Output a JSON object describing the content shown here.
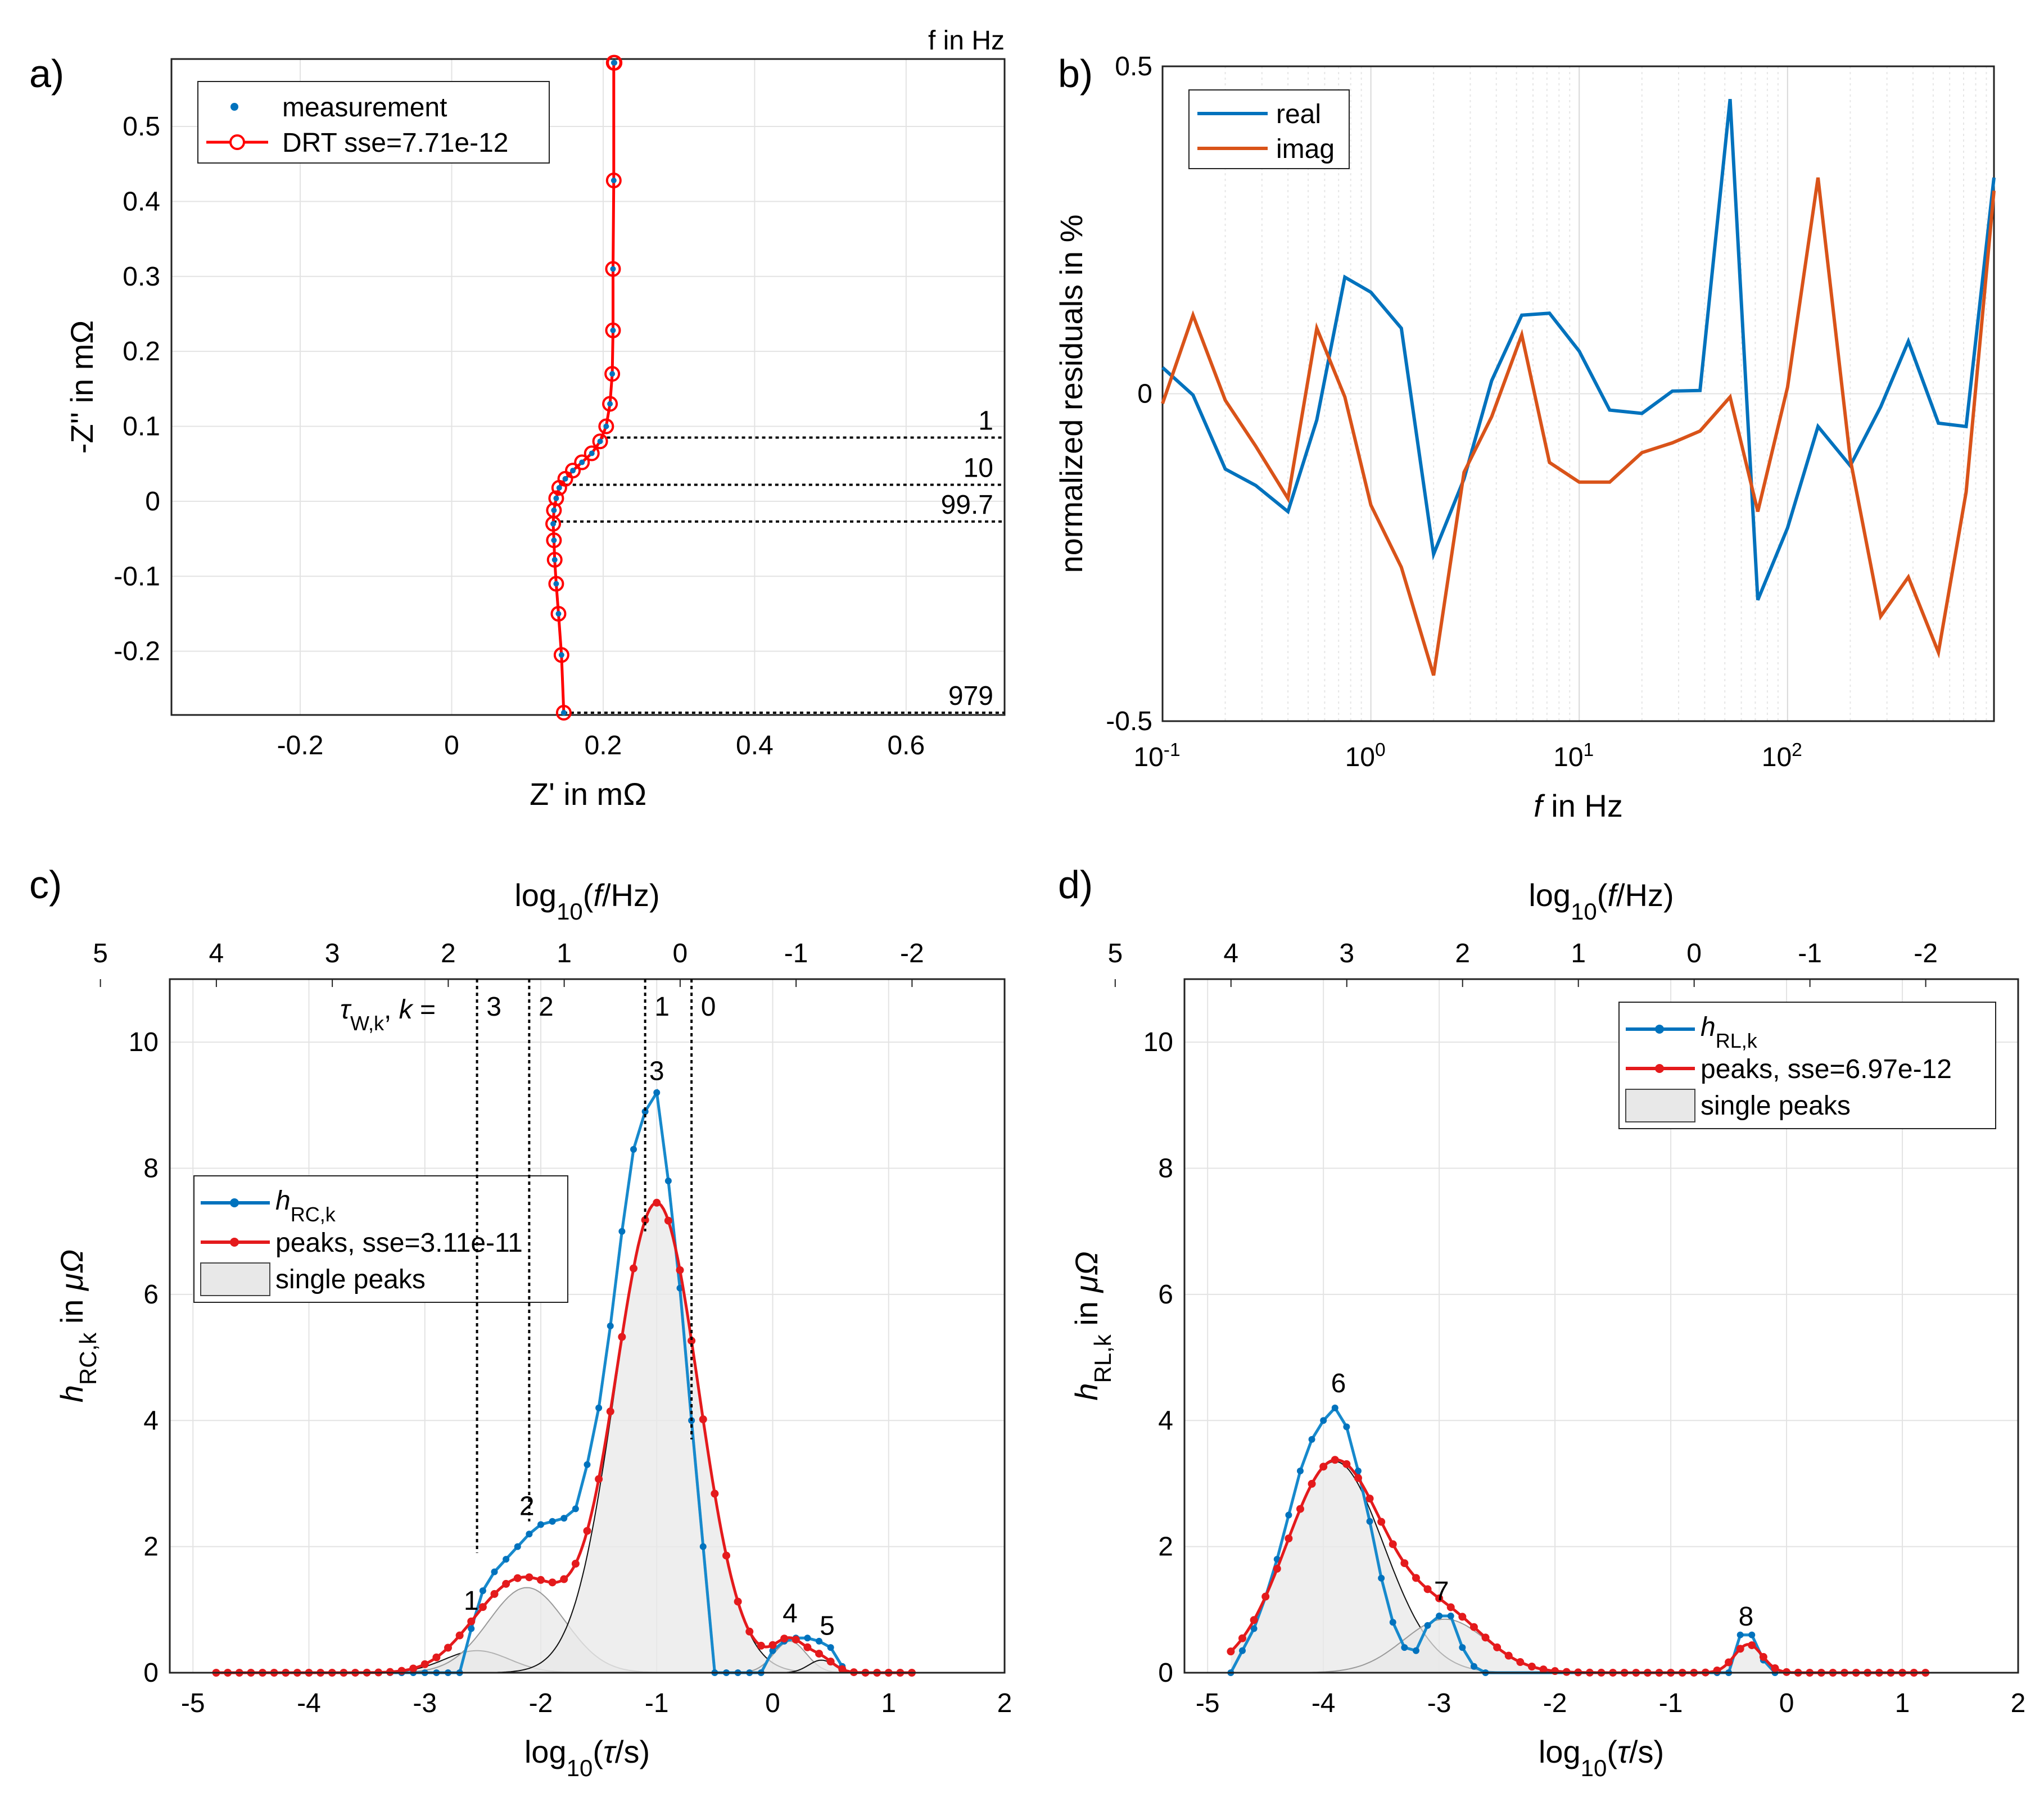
{
  "figure": {
    "panel_a": "a)",
    "panel_b": "b)",
    "panel_c": "c)",
    "panel_d": "d)"
  },
  "chart_data": [
    {
      "id": "a",
      "type": "line",
      "title": "",
      "xlabel": "Z' in mΩ",
      "ylabel": "-Z'' in mΩ",
      "xlim": [
        -0.37,
        0.73
      ],
      "ylim": [
        -0.285,
        0.59
      ],
      "xticks": [
        "-0.2",
        "0",
        "0.2",
        "0.4",
        "0.6"
      ],
      "xtick_values": [
        -0.2,
        0,
        0.2,
        0.4,
        0.6
      ],
      "yticks": [
        "-0.2",
        "-0.1",
        "0",
        "0.1",
        "0.2",
        "0.3",
        "0.4",
        "0.5"
      ],
      "ytick_values": [
        -0.2,
        -0.1,
        0,
        0.1,
        0.2,
        0.3,
        0.4,
        0.5
      ],
      "corner_label": "f in Hz",
      "legend": [
        "measurement",
        "DRT sse=7.71e-12"
      ],
      "series": [
        {
          "name": "measurement / DRT",
          "x": [
            0.148,
            0.145,
            0.141,
            0.138,
            0.136,
            0.135,
            0.134,
            0.135,
            0.138,
            0.142,
            0.15,
            0.16,
            0.172,
            0.185,
            0.196,
            0.204,
            0.209,
            0.212,
            0.213,
            0.213,
            0.214,
            0.214,
            0.215
          ],
          "y": [
            -0.282,
            -0.205,
            -0.15,
            -0.11,
            -0.078,
            -0.052,
            -0.03,
            -0.012,
            0.004,
            0.018,
            0.03,
            0.041,
            0.052,
            0.064,
            0.08,
            0.1,
            0.13,
            0.17,
            0.228,
            0.31,
            0.428,
            0.585,
            0.585
          ]
        }
      ],
      "freq_markers": [
        {
          "label": "1",
          "y": 0.085
        },
        {
          "label": "10",
          "y": 0.022
        },
        {
          "label": "99.7",
          "y": -0.027
        },
        {
          "label": "979",
          "y": -0.282
        }
      ]
    },
    {
      "id": "b",
      "type": "line",
      "xlabel": "f in Hz",
      "ylabel": "normalized residuals in %",
      "xscale": "log",
      "xlim": [
        0.1,
        979
      ],
      "ylim": [
        -0.5,
        0.5
      ],
      "xticks": [
        "10",
        "10",
        "10",
        "10"
      ],
      "xtick_exponents": [
        "-1",
        "0",
        "1",
        "2"
      ],
      "yticks": [
        "-0.5",
        "0",
        "0.5"
      ],
      "ytick_values": [
        -0.5,
        0,
        0.5
      ],
      "legend": [
        "real",
        "imag"
      ],
      "x": [
        0.1,
        0.14,
        0.2,
        0.28,
        0.4,
        0.55,
        0.75,
        1.0,
        1.4,
        2.0,
        2.8,
        3.8,
        5.3,
        7.2,
        10,
        14,
        20,
        28,
        38,
        53,
        72,
        100,
        140,
        200,
        280,
        380,
        530,
        720,
        979
      ],
      "series": [
        {
          "name": "real",
          "color": "#0072BD",
          "values": [
            0.04,
            -0.002,
            -0.115,
            -0.14,
            -0.18,
            -0.04,
            0.178,
            0.155,
            0.1,
            -0.245,
            -0.13,
            0.02,
            0.12,
            0.123,
            0.065,
            -0.025,
            -0.03,
            0.004,
            0.005,
            0.45,
            -0.315,
            -0.205,
            -0.05,
            -0.11,
            -0.02,
            0.08,
            -0.045,
            -0.05,
            0.33
          ]
        },
        {
          "name": "imag",
          "color": "#D95319",
          "values": [
            -0.015,
            0.12,
            -0.01,
            -0.08,
            -0.16,
            0.1,
            -0.005,
            -0.17,
            -0.265,
            -0.43,
            -0.12,
            -0.035,
            0.09,
            -0.105,
            -0.135,
            -0.135,
            -0.09,
            -0.075,
            -0.057,
            -0.005,
            -0.18,
            0.01,
            0.33,
            -0.1,
            -0.34,
            -0.28,
            -0.395,
            -0.15,
            0.31
          ]
        }
      ]
    },
    {
      "id": "c",
      "type": "area",
      "xlabel": "log10(τ/s)",
      "xlabel_parts": [
        "log",
        "10",
        "(",
        "τ",
        "/s)"
      ],
      "ylabel_parts": [
        "h",
        "RC,k",
        " in ",
        "μΩ"
      ],
      "top_label_parts": [
        "log",
        "10",
        "(",
        "f",
        "/Hz)"
      ],
      "xlim": [
        -5.2,
        2
      ],
      "ylim": [
        0,
        11
      ],
      "xticks": [
        "-5",
        "-4",
        "-3",
        "-2",
        "-1",
        "0",
        "1",
        "2"
      ],
      "xtick_values": [
        -5,
        -4,
        -3,
        -2,
        -1,
        0,
        1,
        2
      ],
      "yticks": [
        "0",
        "2",
        "4",
        "6",
        "8",
        "10"
      ],
      "ytick_values": [
        0,
        2,
        4,
        6,
        8,
        10
      ],
      "top_ticks": [
        "5",
        "4",
        "3",
        "2",
        "1",
        "0",
        "-1",
        "-2"
      ],
      "legend": [
        "h_RC,k",
        "peaks, sse=3.11e-11",
        "single peaks"
      ],
      "legend_parts": {
        "h": "h",
        "sub": "RC,k",
        "peaks": "peaks, sse=3.11e-11",
        "single": "single peaks"
      },
      "tau_label_parts": [
        "τ",
        "W,k",
        ", ",
        "k",
        " = "
      ],
      "tau_lines": [
        {
          "label": "3",
          "x": -2.55,
          "ytop": 11
        },
        {
          "label": "2",
          "x": -2.1,
          "ytop": 11
        },
        {
          "label": "1",
          "x": -1.1,
          "ytop": 11
        },
        {
          "label": "0",
          "x": -0.7,
          "ytop": 11
        }
      ],
      "peak_labels": [
        {
          "label": "1",
          "x": -2.6,
          "y": 1.0
        },
        {
          "label": "2",
          "x": -2.12,
          "y": 2.5
        },
        {
          "label": "3",
          "x": -1.0,
          "y": 9.4
        },
        {
          "label": "4",
          "x": 0.15,
          "y": 0.8
        },
        {
          "label": "5",
          "x": 0.47,
          "y": 0.6
        }
      ],
      "peaks": [
        {
          "center": -2.55,
          "height": 0.35,
          "width": 0.28
        },
        {
          "center": -2.12,
          "height": 1.35,
          "width": 0.33
        },
        {
          "center": -1.0,
          "height": 7.45,
          "width": 0.36
        },
        {
          "center": 0.15,
          "height": 0.5,
          "width": 0.14
        },
        {
          "center": 0.42,
          "height": 0.2,
          "width": 0.11
        }
      ],
      "h_series": {
        "x": [
          -3.3,
          -3.2,
          -3.1,
          -3.0,
          -2.9,
          -2.8,
          -2.7,
          -2.6,
          -2.5,
          -2.4,
          -2.3,
          -2.2,
          -2.1,
          -2.0,
          -1.9,
          -1.8,
          -1.7,
          -1.6,
          -1.5,
          -1.4,
          -1.3,
          -1.2,
          -1.1,
          -1.0,
          -0.9,
          -0.8,
          -0.7,
          -0.6,
          -0.5,
          -0.4,
          -0.3,
          -0.2,
          -0.1,
          0.0,
          0.1,
          0.2,
          0.3,
          0.4,
          0.5,
          0.6
        ],
        "y": [
          0,
          0,
          0,
          0,
          0,
          0,
          0,
          0.7,
          1.3,
          1.6,
          1.8,
          2.0,
          2.2,
          2.35,
          2.4,
          2.45,
          2.6,
          3.3,
          4.2,
          5.5,
          7.0,
          8.3,
          8.9,
          9.2,
          7.8,
          6.1,
          4.0,
          2.0,
          0.0,
          0.0,
          0.0,
          0.0,
          0.0,
          0.35,
          0.5,
          0.55,
          0.55,
          0.5,
          0.4,
          0.1
        ]
      },
      "peaks_series_range": [
        -4.8,
        1.2,
        0.1
      ]
    },
    {
      "id": "d",
      "type": "area",
      "xlabel": "log10(τ/s)",
      "xlabel_parts": [
        "log",
        "10",
        "(",
        "τ",
        "/s)"
      ],
      "ylabel_parts": [
        "h",
        "RL,k",
        " in ",
        "μΩ"
      ],
      "top_label_parts": [
        "log",
        "10",
        "(",
        "f",
        "/Hz)"
      ],
      "xlim": [
        -5.2,
        2
      ],
      "ylim": [
        0,
        11
      ],
      "xticks": [
        "-5",
        "-4",
        "-3",
        "-2",
        "-1",
        "0",
        "1",
        "2"
      ],
      "xtick_values": [
        -5,
        -4,
        -3,
        -2,
        -1,
        0,
        1,
        2
      ],
      "yticks": [
        "0",
        "2",
        "4",
        "6",
        "8",
        "10"
      ],
      "ytick_values": [
        0,
        2,
        4,
        6,
        8,
        10
      ],
      "top_ticks": [
        "5",
        "4",
        "3",
        "2",
        "1",
        "0",
        "-1",
        "-2"
      ],
      "legend_parts": {
        "h": "h",
        "sub": "RL,k",
        "peaks": "peaks, sse=6.97e-12",
        "single": "single peaks"
      },
      "peak_labels": [
        {
          "label": "6",
          "x": -3.87,
          "y": 4.45
        },
        {
          "label": "7",
          "x": -2.98,
          "y": 1.15
        },
        {
          "label": "8",
          "x": -0.35,
          "y": 0.75
        }
      ],
      "peaks": [
        {
          "center": -3.9,
          "height": 3.35,
          "width": 0.42
        },
        {
          "center": -2.95,
          "height": 0.85,
          "width": 0.36
        },
        {
          "center": -0.33,
          "height": 0.45,
          "width": 0.12
        }
      ],
      "h_series": {
        "x": [
          -4.8,
          -4.7,
          -4.6,
          -4.5,
          -4.4,
          -4.3,
          -4.2,
          -4.1,
          -4.0,
          -3.9,
          -3.8,
          -3.7,
          -3.6,
          -3.5,
          -3.4,
          -3.3,
          -3.2,
          -3.1,
          -3.0,
          -2.9,
          -2.8,
          -2.7,
          -2.6,
          -0.6,
          -0.5,
          -0.4,
          -0.3,
          -0.2,
          -0.1
        ],
        "y": [
          0,
          0.35,
          0.7,
          1.2,
          1.8,
          2.5,
          3.2,
          3.7,
          4.0,
          4.2,
          3.9,
          3.2,
          2.4,
          1.5,
          0.8,
          0.4,
          0.35,
          0.75,
          0.9,
          0.9,
          0.4,
          0.1,
          0.0,
          0.0,
          0.0,
          0.6,
          0.6,
          0.2,
          0.0
        ]
      },
      "peaks_series_range": [
        -4.8,
        1.2,
        0.1
      ]
    }
  ]
}
